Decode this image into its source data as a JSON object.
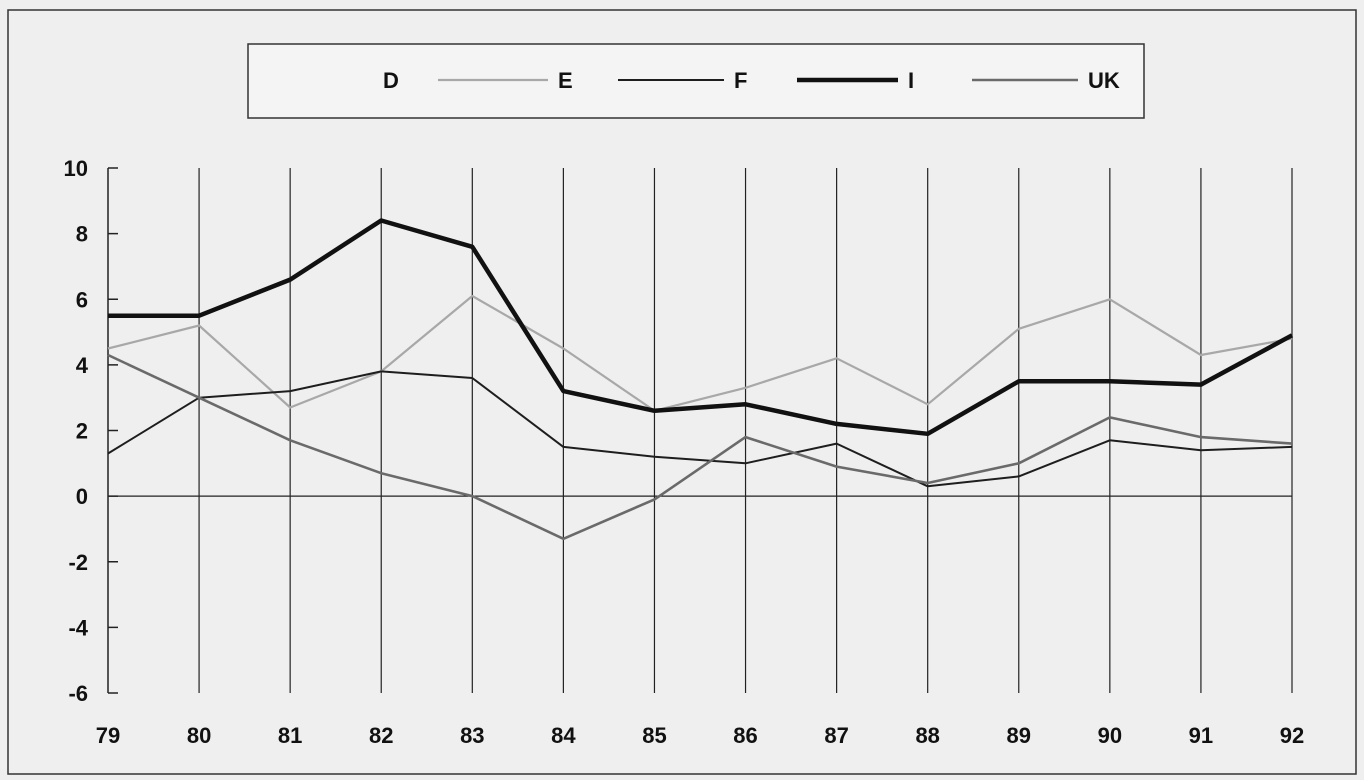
{
  "chart_data": {
    "type": "line",
    "title": "",
    "xlabel": "",
    "ylabel": "",
    "categories": [
      "79",
      "80",
      "81",
      "82",
      "83",
      "84",
      "85",
      "86",
      "87",
      "88",
      "89",
      "90",
      "91",
      "92"
    ],
    "ylim": [
      -6,
      10
    ],
    "yticks": [
      10,
      8,
      6,
      4,
      2,
      0,
      -2,
      -4,
      -6
    ],
    "grid": "vertical lines at each category",
    "legend_position": "top-center",
    "series": [
      {
        "name": "D",
        "style": "none",
        "color": "#ffffff",
        "values": [
          4.2,
          2.9,
          1.7,
          0.7,
          0.0,
          -1.3,
          -0.1,
          1.8,
          0.9,
          0.4,
          1.1,
          2.4,
          1.8,
          1.6
        ]
      },
      {
        "name": "E",
        "style": "light",
        "color": "#a9a9a9",
        "values": [
          4.5,
          5.2,
          2.7,
          3.8,
          6.1,
          4.5,
          2.6,
          3.3,
          4.2,
          2.8,
          5.1,
          6.0,
          4.3,
          4.8
        ]
      },
      {
        "name": "F",
        "style": "thin",
        "color": "#222222",
        "values": [
          1.3,
          3.0,
          3.2,
          3.8,
          3.6,
          1.5,
          1.2,
          1.0,
          1.6,
          0.3,
          0.6,
          1.7,
          1.4,
          1.5
        ]
      },
      {
        "name": "I",
        "style": "thick",
        "color": "#111111",
        "values": [
          5.5,
          5.5,
          6.6,
          8.4,
          7.6,
          3.2,
          2.6,
          2.8,
          2.2,
          1.9,
          3.5,
          3.5,
          3.4,
          4.9
        ]
      },
      {
        "name": "UK",
        "style": "medium",
        "color": "#666666",
        "values": [
          4.3,
          3.0,
          1.7,
          0.7,
          0.0,
          -1.3,
          -0.1,
          1.8,
          0.9,
          0.4,
          1.0,
          2.4,
          1.8,
          1.6
        ]
      }
    ]
  }
}
